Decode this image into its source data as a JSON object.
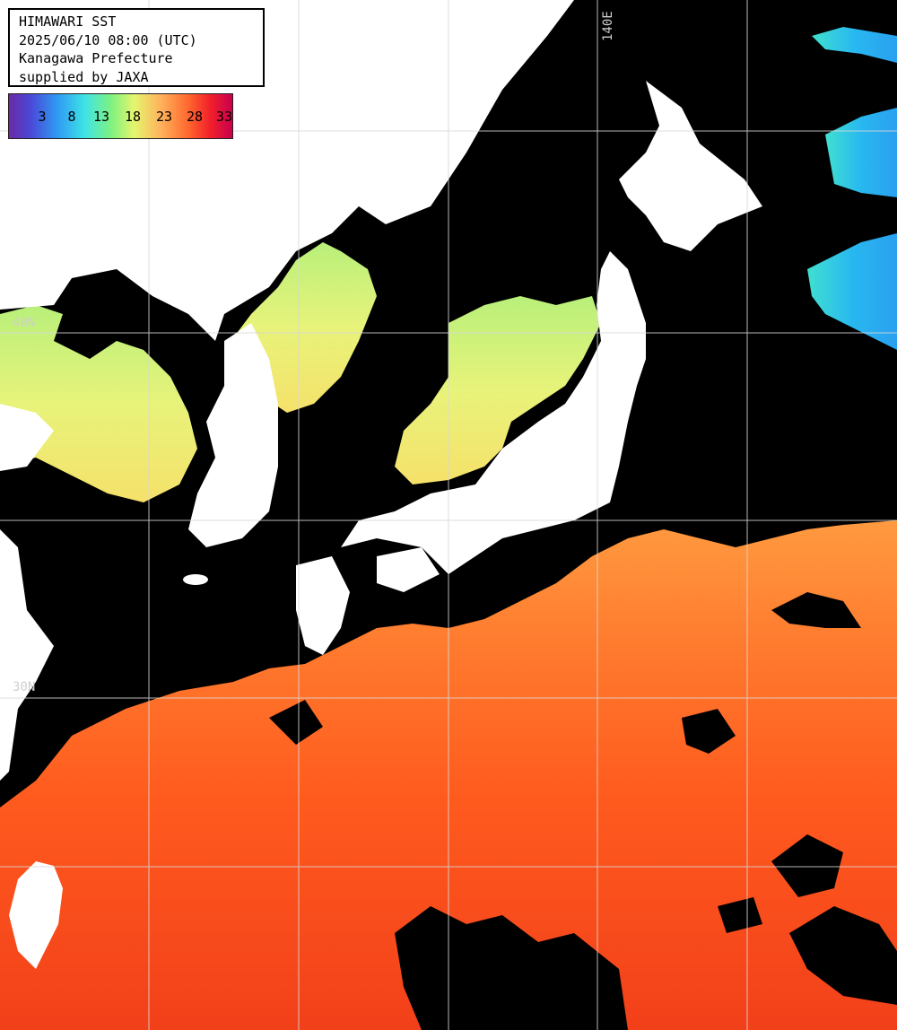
{
  "title_box": {
    "line1": "HIMAWARI SST",
    "line2": "2025/06/10 08:00 (UTC)",
    "line3": "Kanagawa Prefecture",
    "line4": "supplied by JAXA"
  },
  "legend": {
    "ticks": [
      "3",
      "8",
      "13",
      "18",
      "23",
      "28",
      "33"
    ],
    "colors": [
      "#6a2ba5",
      "#4a4ad8",
      "#2f9cf3",
      "#3fe4e6",
      "#7ff27f",
      "#e5f56e",
      "#ffb25c",
      "#ff6a2f",
      "#f2202a",
      "#c8004e"
    ]
  },
  "grid_labels": {
    "lon_140": "140E",
    "lat_40": "40N",
    "lat_30": "30N"
  },
  "colors": {
    "land": "#ffffff",
    "cloud_no_data": "#000000",
    "warm_sea": "#ff5a1e",
    "mild_sea": "#f5ef6a",
    "cool_sea": "#8ff07a",
    "cold_sea": "#28c8f0",
    "grid": "#d8d8d8"
  }
}
